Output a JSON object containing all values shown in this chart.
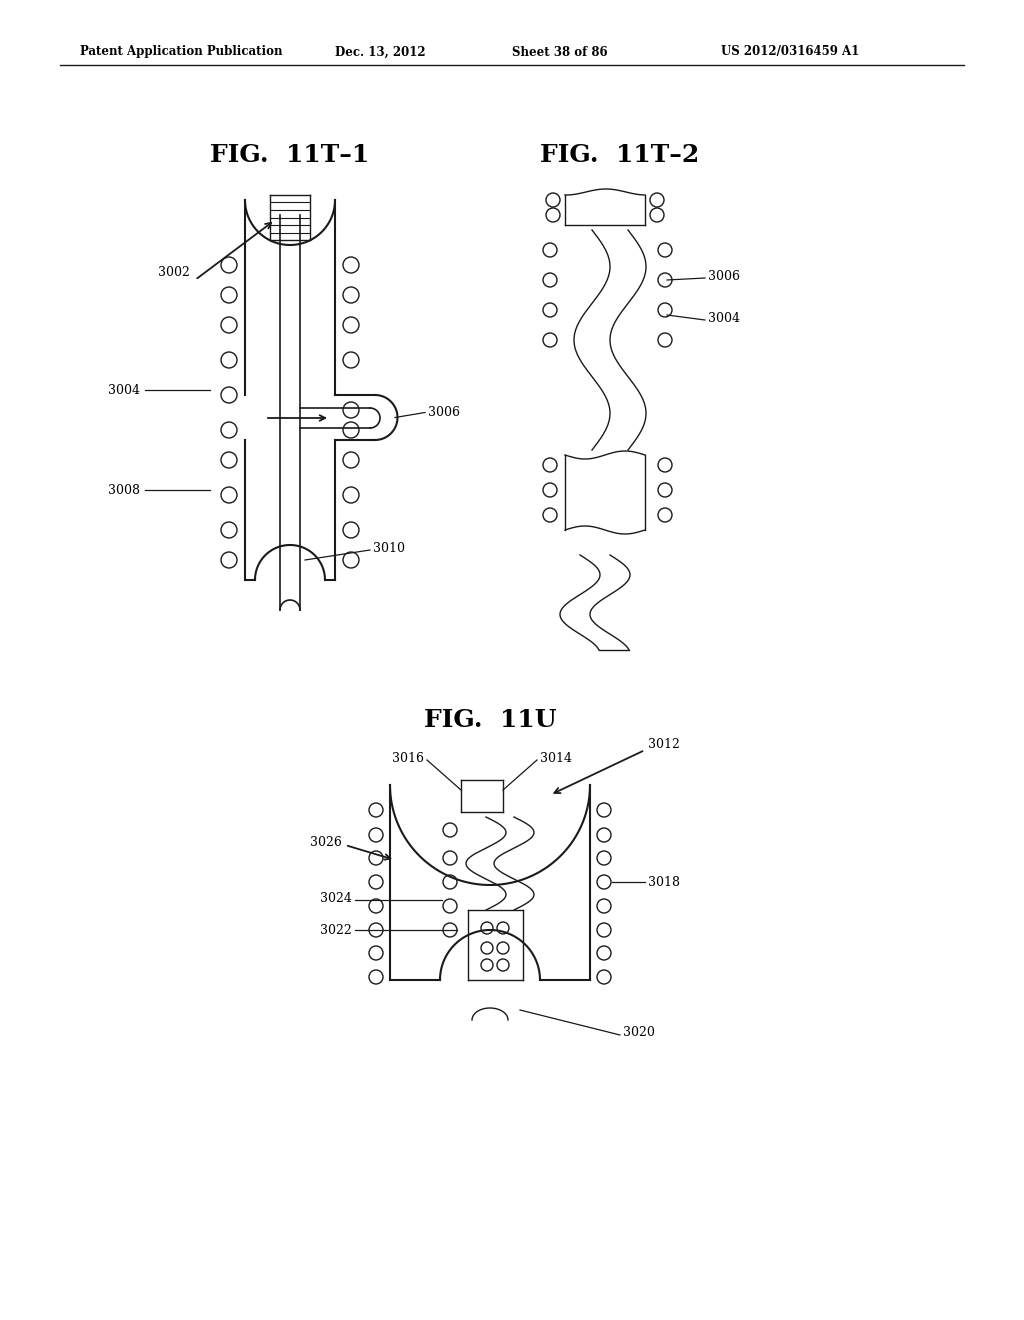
{
  "bg_color": "#ffffff",
  "header_text": "Patent Application Publication",
  "header_date": "Dec. 13, 2012",
  "header_sheet": "Sheet 38 of 86",
  "header_patent": "US 2012/0316459 A1",
  "fig_title_1": "FIG.  11T–1",
  "fig_title_2": "FIG.  11T–2",
  "fig_title_3": "FIG.  11U",
  "line_color": "#1a1a1a"
}
